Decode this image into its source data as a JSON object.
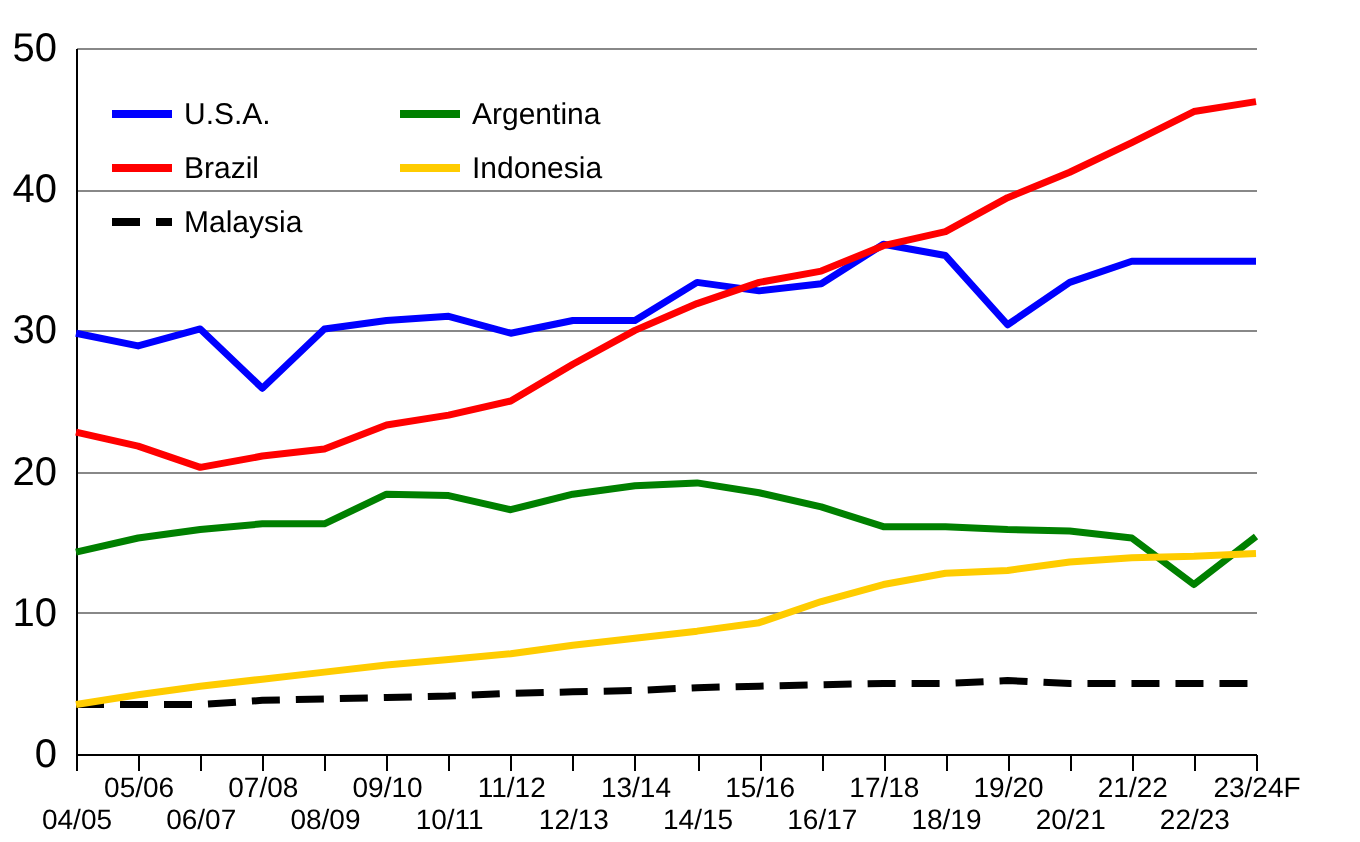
{
  "chart_data": {
    "type": "line",
    "categories": [
      "04/05",
      "05/06",
      "06/07",
      "07/08",
      "08/09",
      "09/10",
      "10/11",
      "11/12",
      "12/13",
      "13/14",
      "14/15",
      "15/16",
      "16/17",
      "17/18",
      "18/19",
      "19/20",
      "20/21",
      "21/22",
      "22/23",
      "23/24F"
    ],
    "series": [
      {
        "name": "U.S.A.",
        "color": "#0000ff",
        "values": [
          29.8,
          28.9,
          30.1,
          25.9,
          30.1,
          30.7,
          31.0,
          29.8,
          30.7,
          30.7,
          33.4,
          32.8,
          33.3,
          36.1,
          35.3,
          30.4,
          33.4,
          34.9,
          34.9,
          34.9
        ]
      },
      {
        "name": "Brazil",
        "color": "#ff0000",
        "values": [
          22.8,
          21.8,
          20.3,
          21.1,
          21.6,
          23.3,
          24.0,
          25.0,
          27.6,
          30.0,
          31.9,
          33.4,
          34.2,
          36.0,
          37.0,
          39.4,
          41.2,
          43.3,
          45.5,
          46.2
        ]
      },
      {
        "name": "Malaysia",
        "color": "#000000",
        "line_style": "dashed",
        "values": [
          3.5,
          3.5,
          3.5,
          3.8,
          3.9,
          4.0,
          4.1,
          4.3,
          4.4,
          4.5,
          4.7,
          4.8,
          4.9,
          5.0,
          5.0,
          5.2,
          5.0,
          5.0,
          5.0,
          5.0
        ]
      },
      {
        "name": "Argentina",
        "color": "#008000",
        "values": [
          14.3,
          15.3,
          15.9,
          16.3,
          16.3,
          18.4,
          18.3,
          17.3,
          18.4,
          19.0,
          19.2,
          18.5,
          17.5,
          16.1,
          16.1,
          15.9,
          15.8,
          15.3,
          12.0,
          15.4
        ]
      },
      {
        "name": "Indonesia",
        "color": "#ffcc00",
        "values": [
          3.5,
          4.2,
          4.8,
          5.3,
          5.8,
          6.3,
          6.7,
          7.1,
          7.7,
          8.2,
          8.7,
          9.3,
          10.8,
          12.0,
          12.8,
          13.0,
          13.6,
          13.9,
          14.0,
          14.2
        ]
      }
    ],
    "ylim": [
      0,
      50
    ],
    "yticks": [
      0,
      10,
      20,
      30,
      40,
      50
    ],
    "grid": "y",
    "legend": "top left",
    "marker": "none",
    "line_style": "solid"
  }
}
